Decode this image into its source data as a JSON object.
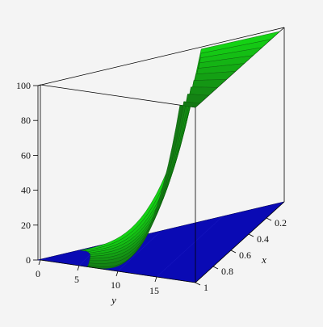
{
  "chart_data": {
    "type": "surface3d",
    "xlabel": "x",
    "ylabel": "y",
    "zlabel": "",
    "xlim": [
      0,
      1
    ],
    "ylim": [
      0,
      20
    ],
    "zlim": [
      0,
      100
    ],
    "x_ticks": [
      {
        "value": 0.2,
        "label": "0.2"
      },
      {
        "value": 0.4,
        "label": "0.4"
      },
      {
        "value": 0.6,
        "label": "0.6"
      },
      {
        "value": 0.8,
        "label": "0.8"
      },
      {
        "value": 1,
        "label": "1"
      }
    ],
    "y_ticks": [
      {
        "value": 0,
        "label": "0"
      },
      {
        "value": 5,
        "label": "5"
      },
      {
        "value": 10,
        "label": "10"
      },
      {
        "value": 15,
        "label": "15"
      }
    ],
    "z_ticks": [
      {
        "value": 0,
        "label": "0"
      },
      {
        "value": 20,
        "label": "20"
      },
      {
        "value": 40,
        "label": "40"
      },
      {
        "value": 60,
        "label": "60"
      },
      {
        "value": 80,
        "label": "80"
      },
      {
        "value": 100,
        "label": "100"
      }
    ],
    "series": [
      {
        "kind": "plane",
        "z": 0,
        "color": "#0a0ab4"
      },
      {
        "kind": "surface",
        "color": "#22c422",
        "x": [
          0.05,
          0.15,
          0.25,
          0.35,
          0.45,
          0.55,
          0.65,
          0.75,
          0.85,
          0.95,
          1.0
        ],
        "y_start": [
          3.5,
          4.0,
          4.4,
          4.7,
          5.0,
          5.2,
          5.4,
          5.6,
          5.8,
          6.0,
          6.0
        ],
        "y_cap": [
          13.5,
          14.0,
          14.5,
          15.0,
          15.5,
          16.0,
          16.5,
          17.0,
          17.5,
          18.0,
          18.0
        ],
        "z_cap": 100
      }
    ],
    "grid": false,
    "legend": "none",
    "box": true
  }
}
